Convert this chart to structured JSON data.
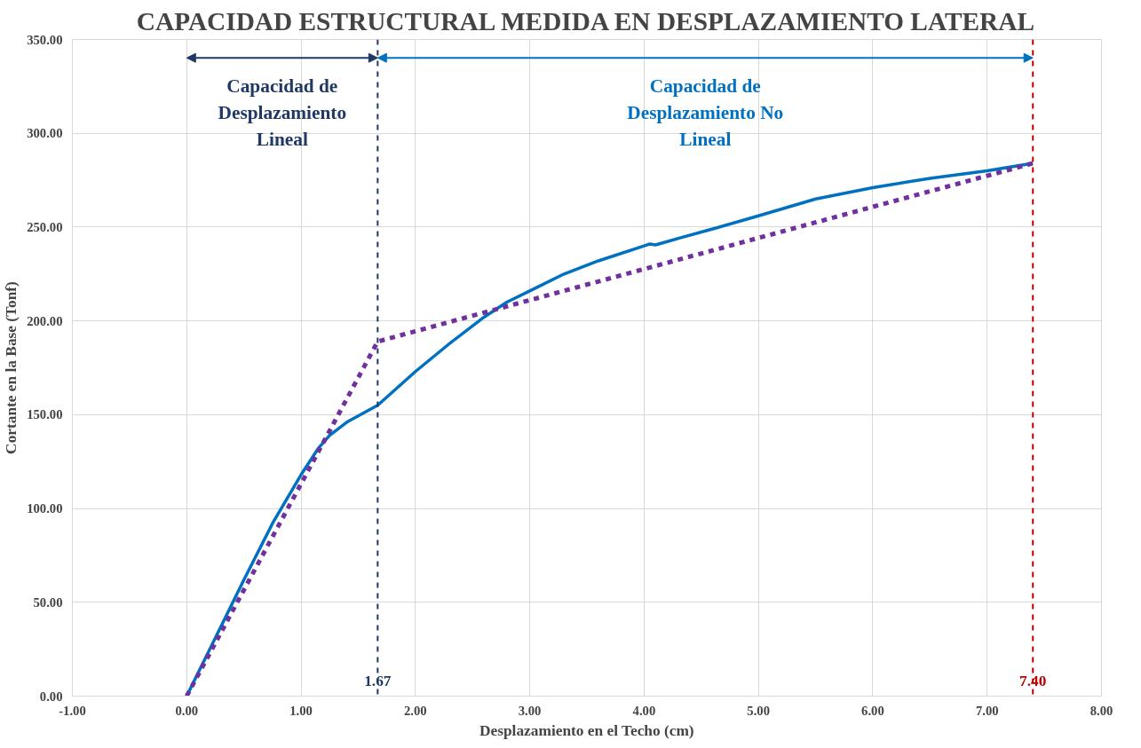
{
  "chart_data": {
    "type": "line",
    "title": "CAPACIDAD ESTRUCTURAL MEDIDA EN DESPLAZAMIENTO LATERAL",
    "xlabel": "Desplazamiento en el Techo (cm)",
    "ylabel": "Cortante en la Base (Tonf)",
    "series": [
      {
        "color": "#0070c0",
        "line_style": "solid",
        "x": [
          0,
          0.25,
          0.5,
          0.75,
          1.0,
          1.15,
          1.25,
          1.4,
          1.67,
          2.0,
          2.3,
          2.6,
          2.8,
          3.0,
          3.3,
          3.6,
          4.0,
          4.05,
          4.1,
          4.3,
          4.6,
          5.0,
          5.5,
          6.0,
          6.5,
          7.0,
          7.4
        ],
        "values": [
          0,
          31,
          62,
          92,
          118,
          132,
          139,
          146,
          155,
          173,
          188,
          202,
          210,
          216,
          225,
          232,
          240,
          241,
          240.5,
          244,
          249,
          256,
          265,
          271,
          276,
          280,
          284
        ]
      },
      {
        "color": "#7030a0",
        "line_style": "dashed",
        "x": [
          0,
          1.67,
          7.4
        ],
        "values": [
          0,
          189,
          284
        ]
      }
    ],
    "xlim": [
      -1,
      8
    ],
    "ylim": [
      0,
      350
    ],
    "xticks": [
      {
        "value": -1,
        "label": "-1.00"
      },
      {
        "value": 0,
        "label": "0.00"
      },
      {
        "value": 1,
        "label": "1.00"
      },
      {
        "value": 2,
        "label": "2.00"
      },
      {
        "value": 3,
        "label": "3.00"
      },
      {
        "value": 4,
        "label": "4.00"
      },
      {
        "value": 5,
        "label": "5.00"
      },
      {
        "value": 6,
        "label": "6.00"
      },
      {
        "value": 7,
        "label": "7.00"
      },
      {
        "value": 8,
        "label": "8.00"
      }
    ],
    "yticks": [
      {
        "value": 0,
        "label": "0.00"
      },
      {
        "value": 50,
        "label": "50.00"
      },
      {
        "value": 100,
        "label": "100.00"
      },
      {
        "value": 150,
        "label": "150.00"
      },
      {
        "value": 200,
        "label": "200.00"
      },
      {
        "value": 250,
        "label": "250.00"
      },
      {
        "value": 300,
        "label": "300.00"
      },
      {
        "value": 350,
        "label": "350.00"
      }
    ],
    "grid": true,
    "marker": "none",
    "ref_lines": [
      {
        "axis": "x",
        "value": 1.67,
        "label": "1.67",
        "color": "#1f3864",
        "line_style": "dashed"
      },
      {
        "axis": "x",
        "value": 7.4,
        "label": "7.40",
        "color": "#c00000",
        "line_style": "dashed"
      }
    ],
    "annotations": [
      "Capacidad de Desplazamiento Lineal",
      "Capacidad de Desplazamiento No Lineal"
    ]
  }
}
